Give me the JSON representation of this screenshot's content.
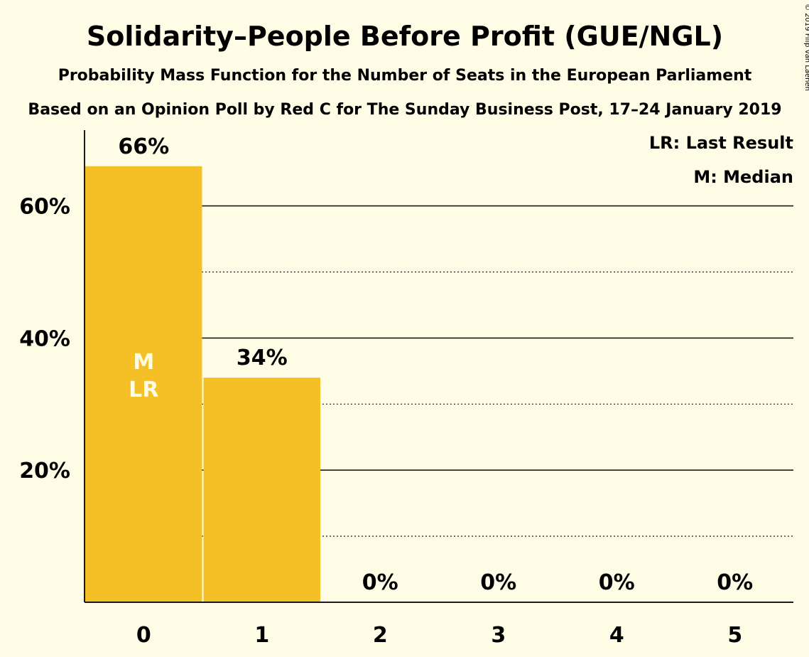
{
  "copyright": "© 2019 Filip van Laenen",
  "chart_data": {
    "type": "bar",
    "title": "Solidarity–People Before Profit (GUE/NGL)",
    "subtitle": "Probability Mass Function for the Number of Seats in the European Parliament",
    "subtitle2": "Based on an Opinion Poll by Red C for The Sunday Business Post, 17–24 January 2019",
    "categories": [
      "0",
      "1",
      "2",
      "3",
      "4",
      "5"
    ],
    "values": [
      66,
      34,
      0,
      0,
      0,
      0
    ],
    "value_labels": [
      "66%",
      "34%",
      "0%",
      "0%",
      "0%",
      "0%"
    ],
    "ylim": [
      0,
      70
    ],
    "y_ticks_major": [
      20,
      40,
      60
    ],
    "y_tick_labels": [
      "20%",
      "40%",
      "60%"
    ],
    "y_ticks_minor": [
      10,
      30,
      50
    ],
    "bar_color": "#f4c025",
    "median_index": 0,
    "last_result_index": 0,
    "median_marker": "M",
    "last_result_marker": "LR",
    "legend": [
      "LR: Last Result",
      "M: Median"
    ],
    "legend_position": "top-right"
  }
}
